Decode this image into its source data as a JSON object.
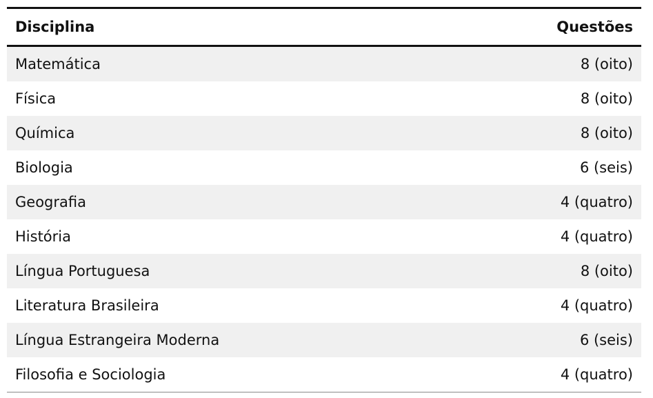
{
  "table": {
    "header": [
      "Disciplina",
      "Questões"
    ],
    "rows": [
      [
        "Matemática",
        "8 (oito)"
      ],
      [
        "Física",
        "8 (oito)"
      ],
      [
        "Química",
        "8 (oito)"
      ],
      [
        "Biologia",
        "6 (seis)"
      ],
      [
        "Geografia",
        "4 (quatro)"
      ],
      [
        "História",
        "4 (quatro)"
      ],
      [
        "Língua Portuguesa",
        "8 (oito)"
      ],
      [
        "Literatura Brasileira",
        "4 (quatro)"
      ],
      [
        "Língua Estrangeira Moderna",
        "6 (seis)"
      ],
      [
        "Filosofia e Sociologia",
        "4 (quatro)"
      ]
    ]
  }
}
